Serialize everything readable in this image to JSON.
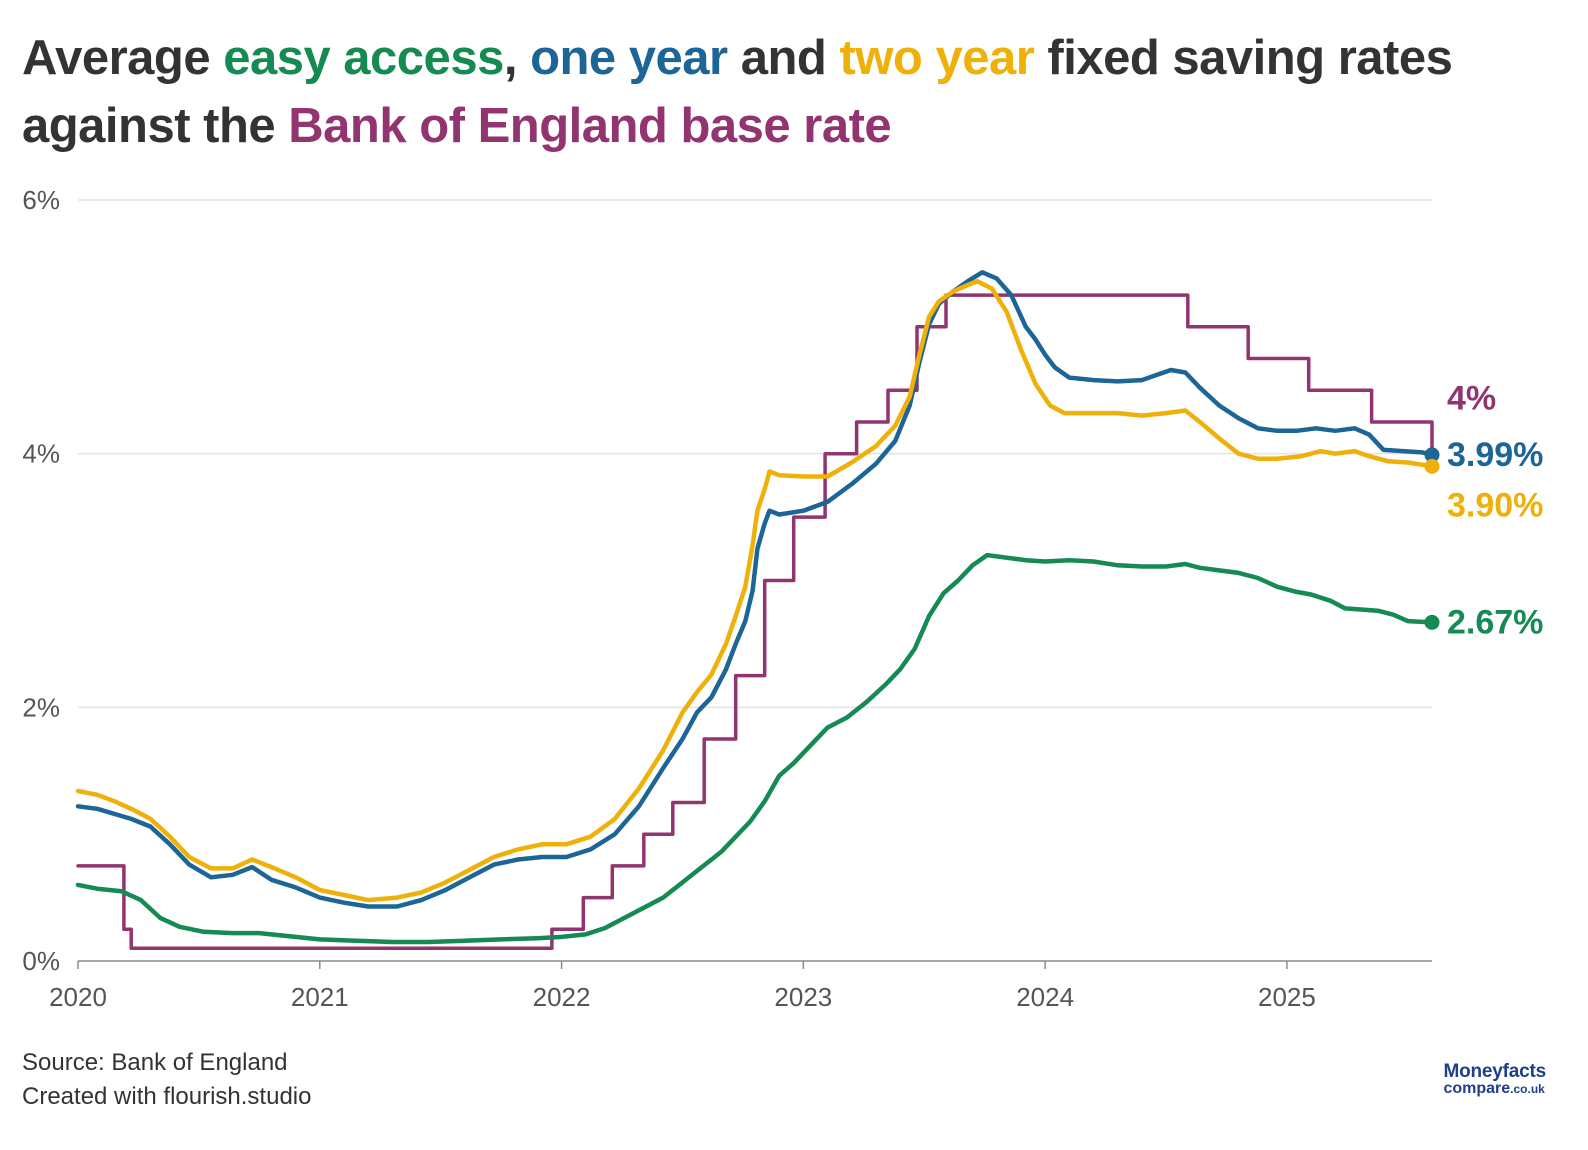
{
  "title": {
    "p1": "Average ",
    "s1": "easy access",
    "p2": ", ",
    "s2": "one year",
    "p3": " and ",
    "s3": "two year",
    "p4": " fixed saving rates against the ",
    "s4": "Bank of England base rate",
    "colors": {
      "easy": "#158a52",
      "one": "#1d6596",
      "two": "#efb00a",
      "boe": "#913470"
    }
  },
  "footer": {
    "source": "Source: Bank of England",
    "created": "Created with flourish.studio"
  },
  "logo": {
    "brand": "Moneyfacts",
    "sub": "compare",
    "tld": ".co.uk"
  },
  "chart_data": {
    "type": "line",
    "xlabel": "",
    "ylabel": "",
    "xlim": [
      2020.0,
      2025.6
    ],
    "ylim": [
      0,
      6
    ],
    "x_ticks": [
      {
        "value": 2020,
        "label": "2020"
      },
      {
        "value": 2021,
        "label": "2021"
      },
      {
        "value": 2022,
        "label": "2022"
      },
      {
        "value": 2023,
        "label": "2023"
      },
      {
        "value": 2024,
        "label": "2024"
      },
      {
        "value": 2025,
        "label": "2025"
      }
    ],
    "y_ticks": [
      {
        "value": 0,
        "label": "0%"
      },
      {
        "value": 2,
        "label": "2%"
      },
      {
        "value": 4,
        "label": "4%"
      },
      {
        "value": 6,
        "label": "6%"
      }
    ],
    "grid": true,
    "series": [
      {
        "name": "Bank of England base rate",
        "key": "boe",
        "color": "#913470",
        "step": true,
        "end_label": "4%",
        "end_marker": false,
        "points": [
          [
            2020.0,
            0.75
          ],
          [
            2020.19,
            0.25
          ],
          [
            2020.22,
            0.1
          ],
          [
            2021.96,
            0.25
          ],
          [
            2022.09,
            0.5
          ],
          [
            2022.21,
            0.75
          ],
          [
            2022.34,
            1.0
          ],
          [
            2022.46,
            1.25
          ],
          [
            2022.59,
            1.75
          ],
          [
            2022.72,
            2.25
          ],
          [
            2022.84,
            3.0
          ],
          [
            2022.96,
            3.5
          ],
          [
            2023.09,
            4.0
          ],
          [
            2023.22,
            4.25
          ],
          [
            2023.35,
            4.5
          ],
          [
            2023.47,
            5.0
          ],
          [
            2023.59,
            5.25
          ],
          [
            2024.59,
            5.0
          ],
          [
            2024.84,
            4.75
          ],
          [
            2025.09,
            4.5
          ],
          [
            2025.35,
            4.25
          ],
          [
            2025.6,
            4.0
          ]
        ]
      },
      {
        "name": "One year fixed",
        "key": "one",
        "color": "#1d6596",
        "step": false,
        "end_label": "3.99%",
        "end_marker": true,
        "points": [
          [
            2020.0,
            1.22
          ],
          [
            2020.08,
            1.2
          ],
          [
            2020.15,
            1.16
          ],
          [
            2020.22,
            1.12
          ],
          [
            2020.3,
            1.06
          ],
          [
            2020.38,
            0.92
          ],
          [
            2020.46,
            0.76
          ],
          [
            2020.55,
            0.66
          ],
          [
            2020.64,
            0.68
          ],
          [
            2020.72,
            0.74
          ],
          [
            2020.8,
            0.64
          ],
          [
            2020.9,
            0.58
          ],
          [
            2021.0,
            0.5
          ],
          [
            2021.1,
            0.46
          ],
          [
            2021.2,
            0.43
          ],
          [
            2021.32,
            0.43
          ],
          [
            2021.42,
            0.48
          ],
          [
            2021.52,
            0.56
          ],
          [
            2021.62,
            0.66
          ],
          [
            2021.72,
            0.76
          ],
          [
            2021.82,
            0.8
          ],
          [
            2021.92,
            0.82
          ],
          [
            2022.02,
            0.82
          ],
          [
            2022.12,
            0.88
          ],
          [
            2022.22,
            1.0
          ],
          [
            2022.32,
            1.22
          ],
          [
            2022.42,
            1.52
          ],
          [
            2022.5,
            1.75
          ],
          [
            2022.56,
            1.96
          ],
          [
            2022.62,
            2.08
          ],
          [
            2022.68,
            2.3
          ],
          [
            2022.72,
            2.5
          ],
          [
            2022.76,
            2.68
          ],
          [
            2022.79,
            2.92
          ],
          [
            2022.81,
            3.25
          ],
          [
            2022.84,
            3.45
          ],
          [
            2022.86,
            3.55
          ],
          [
            2022.9,
            3.52
          ],
          [
            2023.0,
            3.55
          ],
          [
            2023.1,
            3.62
          ],
          [
            2023.2,
            3.76
          ],
          [
            2023.3,
            3.92
          ],
          [
            2023.38,
            4.1
          ],
          [
            2023.44,
            4.38
          ],
          [
            2023.48,
            4.72
          ],
          [
            2023.52,
            5.02
          ],
          [
            2023.56,
            5.18
          ],
          [
            2023.62,
            5.28
          ],
          [
            2023.68,
            5.36
          ],
          [
            2023.74,
            5.43
          ],
          [
            2023.8,
            5.38
          ],
          [
            2023.86,
            5.25
          ],
          [
            2023.92,
            5.0
          ],
          [
            2023.96,
            4.9
          ],
          [
            2024.0,
            4.78
          ],
          [
            2024.04,
            4.68
          ],
          [
            2024.1,
            4.6
          ],
          [
            2024.2,
            4.58
          ],
          [
            2024.3,
            4.57
          ],
          [
            2024.4,
            4.58
          ],
          [
            2024.46,
            4.62
          ],
          [
            2024.52,
            4.66
          ],
          [
            2024.58,
            4.64
          ],
          [
            2024.64,
            4.52
          ],
          [
            2024.72,
            4.38
          ],
          [
            2024.8,
            4.28
          ],
          [
            2024.88,
            4.2
          ],
          [
            2024.96,
            4.18
          ],
          [
            2025.04,
            4.18
          ],
          [
            2025.12,
            4.2
          ],
          [
            2025.2,
            4.18
          ],
          [
            2025.28,
            4.2
          ],
          [
            2025.34,
            4.15
          ],
          [
            2025.4,
            4.03
          ],
          [
            2025.48,
            4.02
          ],
          [
            2025.56,
            4.01
          ],
          [
            2025.6,
            3.99
          ]
        ]
      },
      {
        "name": "Two year fixed",
        "key": "two",
        "color": "#efb00a",
        "step": false,
        "end_label": "3.90%",
        "end_marker": true,
        "points": [
          [
            2020.0,
            1.34
          ],
          [
            2020.08,
            1.31
          ],
          [
            2020.15,
            1.26
          ],
          [
            2020.22,
            1.2
          ],
          [
            2020.3,
            1.12
          ],
          [
            2020.38,
            0.98
          ],
          [
            2020.46,
            0.82
          ],
          [
            2020.55,
            0.73
          ],
          [
            2020.64,
            0.73
          ],
          [
            2020.72,
            0.8
          ],
          [
            2020.8,
            0.74
          ],
          [
            2020.9,
            0.66
          ],
          [
            2021.0,
            0.56
          ],
          [
            2021.1,
            0.52
          ],
          [
            2021.2,
            0.48
          ],
          [
            2021.32,
            0.5
          ],
          [
            2021.42,
            0.54
          ],
          [
            2021.52,
            0.62
          ],
          [
            2021.62,
            0.72
          ],
          [
            2021.72,
            0.82
          ],
          [
            2021.82,
            0.88
          ],
          [
            2021.92,
            0.92
          ],
          [
            2022.02,
            0.92
          ],
          [
            2022.12,
            0.98
          ],
          [
            2022.22,
            1.12
          ],
          [
            2022.32,
            1.36
          ],
          [
            2022.42,
            1.66
          ],
          [
            2022.5,
            1.96
          ],
          [
            2022.56,
            2.12
          ],
          [
            2022.62,
            2.26
          ],
          [
            2022.68,
            2.5
          ],
          [
            2022.72,
            2.72
          ],
          [
            2022.76,
            2.95
          ],
          [
            2022.79,
            3.28
          ],
          [
            2022.81,
            3.55
          ],
          [
            2022.84,
            3.72
          ],
          [
            2022.86,
            3.86
          ],
          [
            2022.9,
            3.83
          ],
          [
            2023.0,
            3.82
          ],
          [
            2023.1,
            3.82
          ],
          [
            2023.2,
            3.93
          ],
          [
            2023.3,
            4.06
          ],
          [
            2023.38,
            4.22
          ],
          [
            2023.44,
            4.45
          ],
          [
            2023.48,
            4.78
          ],
          [
            2023.52,
            5.08
          ],
          [
            2023.56,
            5.2
          ],
          [
            2023.62,
            5.28
          ],
          [
            2023.68,
            5.33
          ],
          [
            2023.72,
            5.36
          ],
          [
            2023.78,
            5.3
          ],
          [
            2023.84,
            5.12
          ],
          [
            2023.9,
            4.82
          ],
          [
            2023.96,
            4.55
          ],
          [
            2024.02,
            4.38
          ],
          [
            2024.08,
            4.32
          ],
          [
            2024.18,
            4.32
          ],
          [
            2024.3,
            4.32
          ],
          [
            2024.4,
            4.3
          ],
          [
            2024.5,
            4.32
          ],
          [
            2024.58,
            4.34
          ],
          [
            2024.64,
            4.25
          ],
          [
            2024.72,
            4.12
          ],
          [
            2024.8,
            4.0
          ],
          [
            2024.88,
            3.96
          ],
          [
            2024.96,
            3.96
          ],
          [
            2025.06,
            3.98
          ],
          [
            2025.14,
            4.02
          ],
          [
            2025.2,
            4.0
          ],
          [
            2025.28,
            4.02
          ],
          [
            2025.34,
            3.98
          ],
          [
            2025.42,
            3.94
          ],
          [
            2025.5,
            3.93
          ],
          [
            2025.6,
            3.9
          ]
        ]
      },
      {
        "name": "Easy access",
        "key": "easy",
        "color": "#158a52",
        "step": false,
        "end_label": "2.67%",
        "end_marker": true,
        "points": [
          [
            2020.0,
            0.6
          ],
          [
            2020.08,
            0.57
          ],
          [
            2020.18,
            0.55
          ],
          [
            2020.26,
            0.48
          ],
          [
            2020.34,
            0.34
          ],
          [
            2020.42,
            0.27
          ],
          [
            2020.52,
            0.23
          ],
          [
            2020.64,
            0.22
          ],
          [
            2020.75,
            0.22
          ],
          [
            2020.85,
            0.2
          ],
          [
            2021.0,
            0.17
          ],
          [
            2021.15,
            0.16
          ],
          [
            2021.3,
            0.15
          ],
          [
            2021.45,
            0.15
          ],
          [
            2021.6,
            0.16
          ],
          [
            2021.75,
            0.17
          ],
          [
            2021.9,
            0.18
          ],
          [
            2022.0,
            0.19
          ],
          [
            2022.1,
            0.21
          ],
          [
            2022.18,
            0.26
          ],
          [
            2022.26,
            0.34
          ],
          [
            2022.34,
            0.42
          ],
          [
            2022.42,
            0.5
          ],
          [
            2022.5,
            0.62
          ],
          [
            2022.58,
            0.74
          ],
          [
            2022.66,
            0.86
          ],
          [
            2022.72,
            0.98
          ],
          [
            2022.78,
            1.1
          ],
          [
            2022.84,
            1.26
          ],
          [
            2022.9,
            1.46
          ],
          [
            2022.96,
            1.56
          ],
          [
            2023.04,
            1.72
          ],
          [
            2023.1,
            1.84
          ],
          [
            2023.18,
            1.92
          ],
          [
            2023.26,
            2.04
          ],
          [
            2023.34,
            2.18
          ],
          [
            2023.4,
            2.3
          ],
          [
            2023.46,
            2.46
          ],
          [
            2023.52,
            2.72
          ],
          [
            2023.58,
            2.9
          ],
          [
            2023.64,
            3.0
          ],
          [
            2023.7,
            3.12
          ],
          [
            2023.76,
            3.2
          ],
          [
            2023.84,
            3.18
          ],
          [
            2023.92,
            3.16
          ],
          [
            2024.0,
            3.15
          ],
          [
            2024.1,
            3.16
          ],
          [
            2024.2,
            3.15
          ],
          [
            2024.3,
            3.12
          ],
          [
            2024.4,
            3.11
          ],
          [
            2024.5,
            3.11
          ],
          [
            2024.58,
            3.13
          ],
          [
            2024.64,
            3.1
          ],
          [
            2024.72,
            3.08
          ],
          [
            2024.8,
            3.06
          ],
          [
            2024.88,
            3.02
          ],
          [
            2024.96,
            2.95
          ],
          [
            2025.04,
            2.91
          ],
          [
            2025.1,
            2.89
          ],
          [
            2025.18,
            2.84
          ],
          [
            2025.24,
            2.78
          ],
          [
            2025.32,
            2.77
          ],
          [
            2025.38,
            2.76
          ],
          [
            2025.44,
            2.73
          ],
          [
            2025.5,
            2.68
          ],
          [
            2025.6,
            2.67
          ]
        ]
      }
    ]
  }
}
